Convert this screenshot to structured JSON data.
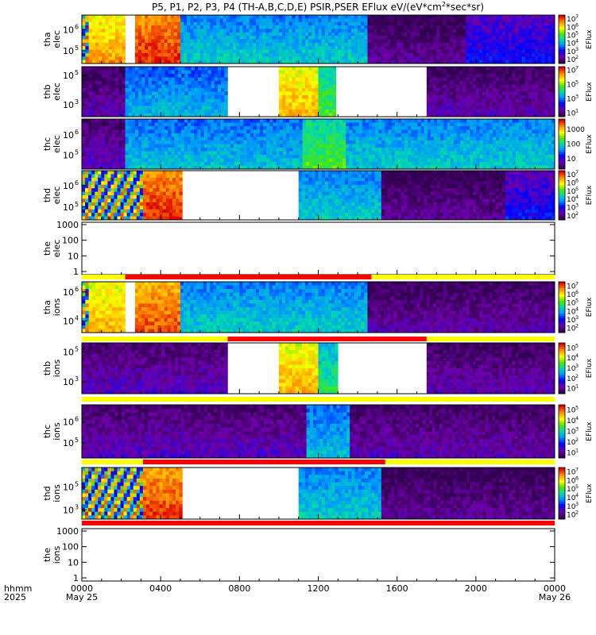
{
  "title": "P5, P1, P2, P3, P4 (TH-A,B,C,D,E) PSIR,PSER EFlux eV/(eV*cm",
  "title_sup": "2",
  "title_tail": "*sec*sr)",
  "chart_data": {
    "type": "heatmap",
    "quantity": "EFlux",
    "x_axis": {
      "label_top": "hhmm",
      "label_bottom": "2025",
      "ticks": [
        "0000",
        "0400",
        "0800",
        "1200",
        "1600",
        "2000",
        "0000"
      ],
      "tick_hours": [
        0,
        4,
        8,
        12,
        16,
        20,
        24
      ],
      "date_labels": [
        {
          "hour": 0,
          "text": "May 25"
        },
        {
          "hour": 24,
          "text": "May 26"
        }
      ],
      "range_hours": [
        0,
        24
      ],
      "minor_ticks_per_major": 4
    },
    "panels": [
      {
        "id": "tha-elec",
        "probe_line": "tha",
        "species_line": "elec",
        "ylog_ticks": [
          5,
          6
        ],
        "ylim_log": [
          4.4,
          6.7
        ],
        "colorbar": {
          "labels_exp": [
            2,
            3,
            4,
            5,
            6,
            7
          ],
          "label": "EFlux",
          "vmin_log": 1.5,
          "vmax_log": 7.5
        },
        "segments": [
          {
            "t0": 0.0,
            "t1": 0.35,
            "level": "mixed"
          },
          {
            "t0": 0.35,
            "t1": 2.2,
            "level": 0.8
          },
          {
            "t0": 2.2,
            "t1": 2.7,
            "level": null
          },
          {
            "t0": 2.7,
            "t1": 5.0,
            "level": 0.92
          },
          {
            "t0": 5.0,
            "t1": 14.5,
            "level": 0.42
          },
          {
            "t0": 14.5,
            "t1": 19.5,
            "level": 0.05
          },
          {
            "t0": 19.5,
            "t1": 24.0,
            "level": 0.2
          }
        ]
      },
      {
        "id": "thb-elec",
        "probe_line": "thb",
        "species_line": "elec",
        "ylog_ticks": [
          3,
          5
        ],
        "ylim_log": [
          2.2,
          5.6
        ],
        "colorbar": {
          "labels_exp": [
            1,
            3,
            5,
            7
          ],
          "label": "EFlux",
          "vmin_log": 0.5,
          "vmax_log": 7.5
        },
        "segments": [
          {
            "t0": 0.0,
            "t1": 2.2,
            "level": 0.08
          },
          {
            "t0": 2.2,
            "t1": 7.4,
            "level": 0.38
          },
          {
            "t0": 7.4,
            "t1": 10.0,
            "level": null
          },
          {
            "t0": 10.0,
            "t1": 12.0,
            "level": 0.78
          },
          {
            "t0": 12.0,
            "t1": 12.9,
            "level": 0.55
          },
          {
            "t0": 12.9,
            "t1": 17.5,
            "level": null
          },
          {
            "t0": 17.5,
            "t1": 24.0,
            "level": 0.08
          }
        ]
      },
      {
        "id": "thc-elec",
        "probe_line": "thc",
        "species_line": "elec",
        "ylog_ticks": [
          5,
          6
        ],
        "ylim_log": [
          4.3,
          6.8
        ],
        "colorbar": {
          "labels": [
            "10",
            "100",
            "1000"
          ],
          "label": "EFlux",
          "vmin_log": 0.3,
          "vmax_log": 3.7
        },
        "segments": [
          {
            "t0": 0.0,
            "t1": 2.2,
            "level": 0.1
          },
          {
            "t0": 2.2,
            "t1": 11.2,
            "level": 0.4
          },
          {
            "t0": 11.2,
            "t1": 13.4,
            "level": 0.55
          },
          {
            "t0": 13.4,
            "t1": 24.0,
            "level": 0.42
          }
        ]
      },
      {
        "id": "thd-elec",
        "probe_line": "thd",
        "species_line": "elec",
        "ylog_ticks": [
          5,
          6
        ],
        "ylim_log": [
          4.4,
          6.7
        ],
        "colorbar": {
          "labels_exp": [
            2,
            3,
            4,
            5,
            6,
            7
          ],
          "label": "EFlux",
          "vmin_log": 1.5,
          "vmax_log": 7.5
        },
        "segments": [
          {
            "t0": 0.0,
            "t1": 3.1,
            "level": "mixed"
          },
          {
            "t0": 3.1,
            "t1": 5.1,
            "level": 0.92
          },
          {
            "t0": 5.1,
            "t1": 11.0,
            "level": null
          },
          {
            "t0": 11.0,
            "t1": 15.2,
            "level": 0.42
          },
          {
            "t0": 15.2,
            "t1": 21.5,
            "level": 0.05
          },
          {
            "t0": 21.5,
            "t1": 24.0,
            "level": 0.2
          }
        ]
      },
      {
        "id": "the-elec",
        "probe_line": "the",
        "species_line": "elec",
        "linear_empty": true,
        "y_tick_labels": [
          "1",
          "10",
          "100",
          "1000"
        ],
        "ylim_log": [
          -0.2,
          3.15
        ],
        "colorbar": null,
        "segments": []
      },
      {
        "id": "tha-ions",
        "probe_line": "tha",
        "species_line": "ions",
        "ylog_ticks": [
          4,
          6
        ],
        "ylim_log": [
          3.2,
          6.7
        ],
        "colorbar": {
          "labels_exp": [
            2,
            3,
            4,
            5,
            6,
            7
          ],
          "label": "EFlux",
          "vmin_log": 1.5,
          "vmax_log": 7.5
        },
        "segments": [
          {
            "t0": 0.0,
            "t1": 0.35,
            "level": "mixed"
          },
          {
            "t0": 0.35,
            "t1": 2.2,
            "level": 0.78
          },
          {
            "t0": 2.2,
            "t1": 2.7,
            "level": null
          },
          {
            "t0": 2.7,
            "t1": 5.0,
            "level": 0.88
          },
          {
            "t0": 5.0,
            "t1": 14.5,
            "level": 0.42
          },
          {
            "t0": 14.5,
            "t1": 24.0,
            "level": 0.07
          }
        ]
      },
      {
        "id": "thb-ions",
        "probe_line": "thb",
        "species_line": "ions",
        "ylog_ticks": [
          3,
          5
        ],
        "ylim_log": [
          2.2,
          5.6
        ],
        "colorbar": {
          "labels_exp": [
            1,
            2,
            3,
            4,
            5
          ],
          "label": "EFlux",
          "vmin_log": 0.5,
          "vmax_log": 5.5
        },
        "segments": [
          {
            "t0": 0.0,
            "t1": 7.4,
            "level": 0.1
          },
          {
            "t0": 7.4,
            "t1": 10.0,
            "level": null
          },
          {
            "t0": 10.0,
            "t1": 12.0,
            "level": 0.78
          },
          {
            "t0": 12.0,
            "t1": 13.0,
            "level": 0.5
          },
          {
            "t0": 13.0,
            "t1": 17.5,
            "level": null
          },
          {
            "t0": 17.5,
            "t1": 24.0,
            "level": 0.08
          }
        ]
      },
      {
        "id": "thc-ions",
        "probe_line": "thc",
        "species_line": "ions",
        "ylog_ticks": [
          5,
          6
        ],
        "ylim_log": [
          4.3,
          6.8
        ],
        "colorbar": {
          "labels_exp": [
            1,
            2,
            3,
            4,
            5
          ],
          "label": "EFlux",
          "vmin_log": 0.5,
          "vmax_log": 5.5
        },
        "segments": [
          {
            "t0": 0.0,
            "t1": 11.4,
            "level": 0.1
          },
          {
            "t0": 11.4,
            "t1": 13.6,
            "level": 0.4
          },
          {
            "t0": 13.6,
            "t1": 24.0,
            "level": 0.08
          }
        ]
      },
      {
        "id": "thd-ions",
        "probe_line": "thd",
        "species_line": "ions",
        "ylog_ticks": [
          3,
          5
        ],
        "ylim_log": [
          2.2,
          6.7
        ],
        "colorbar": {
          "labels_exp": [
            2,
            3,
            4,
            5,
            6,
            7
          ],
          "label": "EFlux",
          "vmin_log": 1.5,
          "vmax_log": 7.5
        },
        "segments": [
          {
            "t0": 0.0,
            "t1": 3.1,
            "level": "mixed"
          },
          {
            "t0": 3.1,
            "t1": 5.1,
            "level": 0.9
          },
          {
            "t0": 5.1,
            "t1": 11.0,
            "level": null
          },
          {
            "t0": 11.0,
            "t1": 15.2,
            "level": 0.42
          },
          {
            "t0": 15.2,
            "t1": 24.0,
            "level": 0.05
          }
        ]
      },
      {
        "id": "the-ions",
        "probe_line": "the",
        "species_line": "ions",
        "linear_empty": true,
        "y_tick_labels": [
          "1",
          "10",
          "100",
          "1000"
        ],
        "ylim_log": [
          -0.2,
          3.15
        ],
        "colorbar": null,
        "segments": []
      }
    ],
    "mode_bars": [
      {
        "after_panel": "the-elec",
        "base": "yellow",
        "red": [
          [
            2.2,
            14.7
          ]
        ]
      },
      {
        "after_panel": "tha-ions",
        "base": "yellow",
        "red": [
          [
            7.4,
            17.5
          ]
        ]
      },
      {
        "after_panel": "thb-ions",
        "base": "yellow",
        "red": []
      },
      {
        "after_panel": "thc-ions",
        "base": "yellow",
        "red": [
          [
            3.1,
            15.4
          ]
        ]
      },
      {
        "after_panel": "thd-ions",
        "base": "red",
        "red": [
          [
            0,
            24
          ]
        ]
      }
    ],
    "colors": {
      "empty": "#ffffff",
      "mode_yellow": "#ffff00",
      "mode_red": "#ff0000"
    }
  }
}
